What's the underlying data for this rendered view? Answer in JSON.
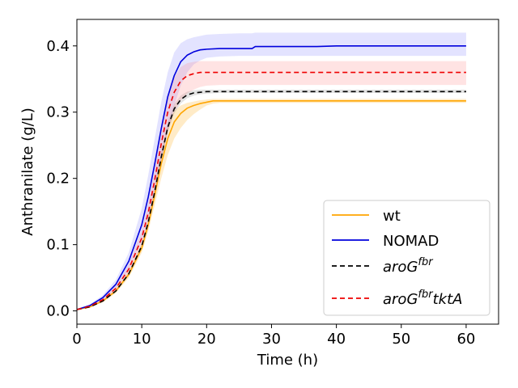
{
  "chart_data": {
    "type": "line",
    "xlabel": "Time (h)",
    "ylabel": "Anthranilate (g/L)",
    "xlim": [
      0,
      65
    ],
    "ylim": [
      -0.02,
      0.44
    ],
    "xticks": [
      0,
      10,
      20,
      30,
      40,
      50,
      60
    ],
    "yticks": [
      0.0,
      0.1,
      0.2,
      0.3,
      0.4
    ],
    "xtick_labels": [
      "0",
      "10",
      "20",
      "30",
      "40",
      "50",
      "60"
    ],
    "ytick_labels": [
      "0.0",
      "0.1",
      "0.2",
      "0.3",
      "0.4"
    ],
    "grid": false,
    "legend_position": "lower-right",
    "series": [
      {
        "name": "wt",
        "color": "#ffa500",
        "style": "solid",
        "band_color": "#ffa500",
        "x": [
          0,
          2,
          4,
          6,
          8,
          10,
          11,
          12,
          13,
          14,
          15,
          16,
          17,
          18,
          19,
          20,
          21,
          22,
          25,
          30,
          40,
          50,
          60
        ],
        "y": [
          0.002,
          0.006,
          0.015,
          0.03,
          0.055,
          0.095,
          0.13,
          0.175,
          0.222,
          0.26,
          0.285,
          0.298,
          0.306,
          0.31,
          0.313,
          0.315,
          0.317,
          0.317,
          0.317,
          0.317,
          0.317,
          0.317,
          0.317
        ],
        "band_low": [
          0.002,
          0.005,
          0.013,
          0.027,
          0.05,
          0.088,
          0.12,
          0.16,
          0.2,
          0.235,
          0.26,
          0.276,
          0.288,
          0.297,
          0.304,
          0.31,
          0.313,
          0.314,
          0.314,
          0.314,
          0.314,
          0.314,
          0.314
        ],
        "band_high": [
          0.002,
          0.007,
          0.017,
          0.033,
          0.06,
          0.103,
          0.14,
          0.19,
          0.24,
          0.28,
          0.302,
          0.31,
          0.314,
          0.316,
          0.318,
          0.319,
          0.32,
          0.32,
          0.32,
          0.32,
          0.32,
          0.32,
          0.32
        ]
      },
      {
        "name": "NOMAD",
        "color": "#0000dd",
        "style": "solid",
        "band_color": "#8080ff",
        "x": [
          0,
          2,
          4,
          6,
          8,
          10,
          11,
          12,
          13,
          14,
          15,
          16,
          17,
          18,
          19,
          20,
          22,
          25,
          27,
          27.5,
          30,
          37,
          40,
          50,
          60
        ],
        "y": [
          0.002,
          0.008,
          0.02,
          0.04,
          0.075,
          0.13,
          0.172,
          0.222,
          0.275,
          0.323,
          0.355,
          0.376,
          0.386,
          0.391,
          0.394,
          0.395,
          0.396,
          0.396,
          0.396,
          0.399,
          0.399,
          0.399,
          0.4,
          0.4,
          0.4
        ],
        "band_low": [
          0.002,
          0.006,
          0.016,
          0.033,
          0.062,
          0.105,
          0.14,
          0.18,
          0.225,
          0.27,
          0.31,
          0.34,
          0.36,
          0.372,
          0.378,
          0.382,
          0.384,
          0.385,
          0.385,
          0.385,
          0.385,
          0.385,
          0.385,
          0.385,
          0.385
        ],
        "band_high": [
          0.002,
          0.01,
          0.024,
          0.047,
          0.088,
          0.155,
          0.205,
          0.26,
          0.315,
          0.36,
          0.39,
          0.404,
          0.41,
          0.413,
          0.415,
          0.417,
          0.418,
          0.419,
          0.419,
          0.42,
          0.42,
          0.42,
          0.42,
          0.42,
          0.42
        ]
      },
      {
        "name": "aroG^fbr",
        "legend_base": "aroG",
        "legend_sup": "fbr",
        "legend_suffix": "",
        "color": "#000000",
        "style": "dashed",
        "band_color": "#808080",
        "x": [
          0,
          2,
          4,
          6,
          8,
          10,
          11,
          12,
          13,
          14,
          15,
          16,
          17,
          18,
          19,
          20,
          22,
          25,
          30,
          40,
          50,
          60
        ],
        "y": [
          0.002,
          0.006,
          0.015,
          0.03,
          0.056,
          0.098,
          0.134,
          0.18,
          0.232,
          0.277,
          0.305,
          0.319,
          0.326,
          0.329,
          0.33,
          0.331,
          0.331,
          0.331,
          0.331,
          0.331,
          0.331,
          0.331
        ],
        "band_low": [
          0.002,
          0.0058,
          0.0145,
          0.029,
          0.054,
          0.095,
          0.13,
          0.175,
          0.226,
          0.27,
          0.298,
          0.313,
          0.321,
          0.325,
          0.327,
          0.328,
          0.329,
          0.329,
          0.329,
          0.329,
          0.329,
          0.329
        ],
        "band_high": [
          0.002,
          0.0062,
          0.0155,
          0.031,
          0.058,
          0.101,
          0.138,
          0.185,
          0.238,
          0.284,
          0.312,
          0.325,
          0.331,
          0.333,
          0.334,
          0.334,
          0.334,
          0.334,
          0.334,
          0.334,
          0.334,
          0.334
        ]
      },
      {
        "name": "aroG^fbr tktA",
        "legend_base": "aroG",
        "legend_sup": "fbr",
        "legend_suffix": "tktA",
        "color": "#ee0000",
        "style": "dashed",
        "band_color": "#ff8080",
        "x": [
          0,
          2,
          4,
          6,
          8,
          10,
          11,
          12,
          13,
          14,
          15,
          16,
          17,
          18,
          19,
          20,
          22,
          25,
          30,
          40,
          50,
          60
        ],
        "y": [
          0.002,
          0.007,
          0.017,
          0.034,
          0.063,
          0.11,
          0.148,
          0.198,
          0.252,
          0.3,
          0.33,
          0.347,
          0.355,
          0.358,
          0.36,
          0.36,
          0.36,
          0.36,
          0.36,
          0.36,
          0.36,
          0.36
        ],
        "band_low": [
          0.002,
          0.006,
          0.015,
          0.03,
          0.056,
          0.1,
          0.135,
          0.18,
          0.228,
          0.272,
          0.3,
          0.318,
          0.328,
          0.334,
          0.338,
          0.34,
          0.341,
          0.341,
          0.341,
          0.341,
          0.341,
          0.341
        ],
        "band_high": [
          0.002,
          0.008,
          0.019,
          0.038,
          0.07,
          0.122,
          0.162,
          0.215,
          0.272,
          0.322,
          0.352,
          0.368,
          0.374,
          0.376,
          0.377,
          0.377,
          0.377,
          0.377,
          0.377,
          0.377,
          0.377,
          0.377
        ]
      }
    ]
  }
}
